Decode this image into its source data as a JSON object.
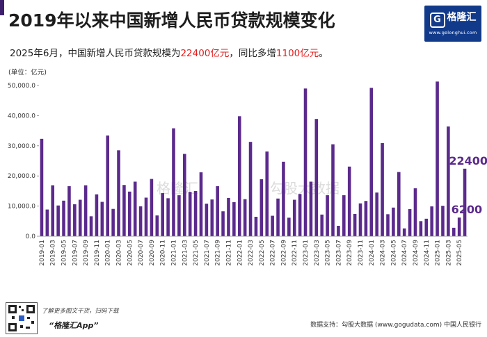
{
  "header": {
    "title": "2019年以来中国新增人民币贷款规模变化",
    "subtitle_prefix": "2025年6月，中国新增人民币贷款规模为",
    "subtitle_value1": "22400亿元",
    "subtitle_mid": "，同比多增",
    "subtitle_value2": "1100亿元",
    "subtitle_suffix": "。"
  },
  "logo": {
    "name": "格隆汇",
    "url": "www.gelonghui.com",
    "icon": "g-logo-icon"
  },
  "footer": {
    "promo": "了解更多图文干货，扫码下载",
    "app": "“格隆汇App”",
    "source": "数据支持：勾股大数据  (www.gogudata.com)  中国人民银行",
    "qr_icon": "qr-code-icon"
  },
  "watermarks": {
    "left": "格隆汇",
    "right": "勾股大数据"
  },
  "colors": {
    "bar": "#5b2a8c",
    "highlight": "#e02020",
    "logo_bg": "#123a8a"
  },
  "chart_data": {
    "type": "bar",
    "unit_label": "(单位：亿元)",
    "ylim": [
      0,
      53000
    ],
    "yticks": [
      0,
      10000,
      20000,
      30000,
      40000,
      50000
    ],
    "ytick_labels": [
      "0.0",
      "10,000.0",
      "20,000.0",
      "30,000.0",
      "40,000.0",
      "50,000.0"
    ],
    "grid": false,
    "categories": [
      "2019-01",
      "2019-02",
      "2019-03",
      "2019-04",
      "2019-05",
      "2019-06",
      "2019-07",
      "2019-08",
      "2019-09",
      "2019-10",
      "2019-11",
      "2019-12",
      "2020-01",
      "2020-02",
      "2020-03",
      "2020-04",
      "2020-05",
      "2020-06",
      "2020-07",
      "2020-08",
      "2020-09",
      "2020-10",
      "2020-11",
      "2020-12",
      "2021-01",
      "2021-02",
      "2021-03",
      "2021-04",
      "2021-05",
      "2021-06",
      "2021-07",
      "2021-08",
      "2021-09",
      "2021-10",
      "2021-11",
      "2021-12",
      "2022-01",
      "2022-02",
      "2022-03",
      "2022-04",
      "2022-05",
      "2022-06",
      "2022-07",
      "2022-08",
      "2022-09",
      "2022-10",
      "2022-11",
      "2022-12",
      "2023-01",
      "2023-02",
      "2023-03",
      "2023-04",
      "2023-05",
      "2023-06",
      "2023-07",
      "2023-08",
      "2023-09",
      "2023-10",
      "2023-11",
      "2023-12",
      "2024-01",
      "2024-02",
      "2024-03",
      "2024-04",
      "2024-05",
      "2024-06",
      "2024-07",
      "2024-08",
      "2024-09",
      "2024-10",
      "2024-11",
      "2024-12",
      "2025-01",
      "2025-02",
      "2025-03",
      "2025-04",
      "2025-05",
      "2025-06"
    ],
    "values": [
      32300,
      8858,
      16900,
      10200,
      11800,
      16600,
      10600,
      12100,
      16900,
      6613,
      13900,
      11400,
      33400,
      9057,
      28500,
      17000,
      14800,
      18100,
      9927,
      12800,
      19000,
      6898,
      14300,
      12600,
      35800,
      13600,
      27300,
      14700,
      15000,
      21200,
      10800,
      12200,
      16600,
      8262,
      12700,
      11300,
      39800,
      12300,
      31300,
      6454,
      18900,
      28100,
      6790,
      12500,
      24700,
      6152,
      12100,
      14000,
      49000,
      18100,
      38900,
      7188,
      13600,
      30500,
      3459,
      13600,
      23100,
      7384,
      10900,
      11700,
      49200,
      14500,
      30900,
      7300,
      9500,
      21300,
      2600,
      9000,
      15900,
      5000,
      5800,
      9900,
      51300,
      10100,
      36400,
      2800,
      6200,
      22400
    ],
    "xtick_step": 2,
    "annotations": [
      {
        "index": 77,
        "text": "22400"
      },
      {
        "index": 76,
        "text": "6200"
      }
    ]
  }
}
